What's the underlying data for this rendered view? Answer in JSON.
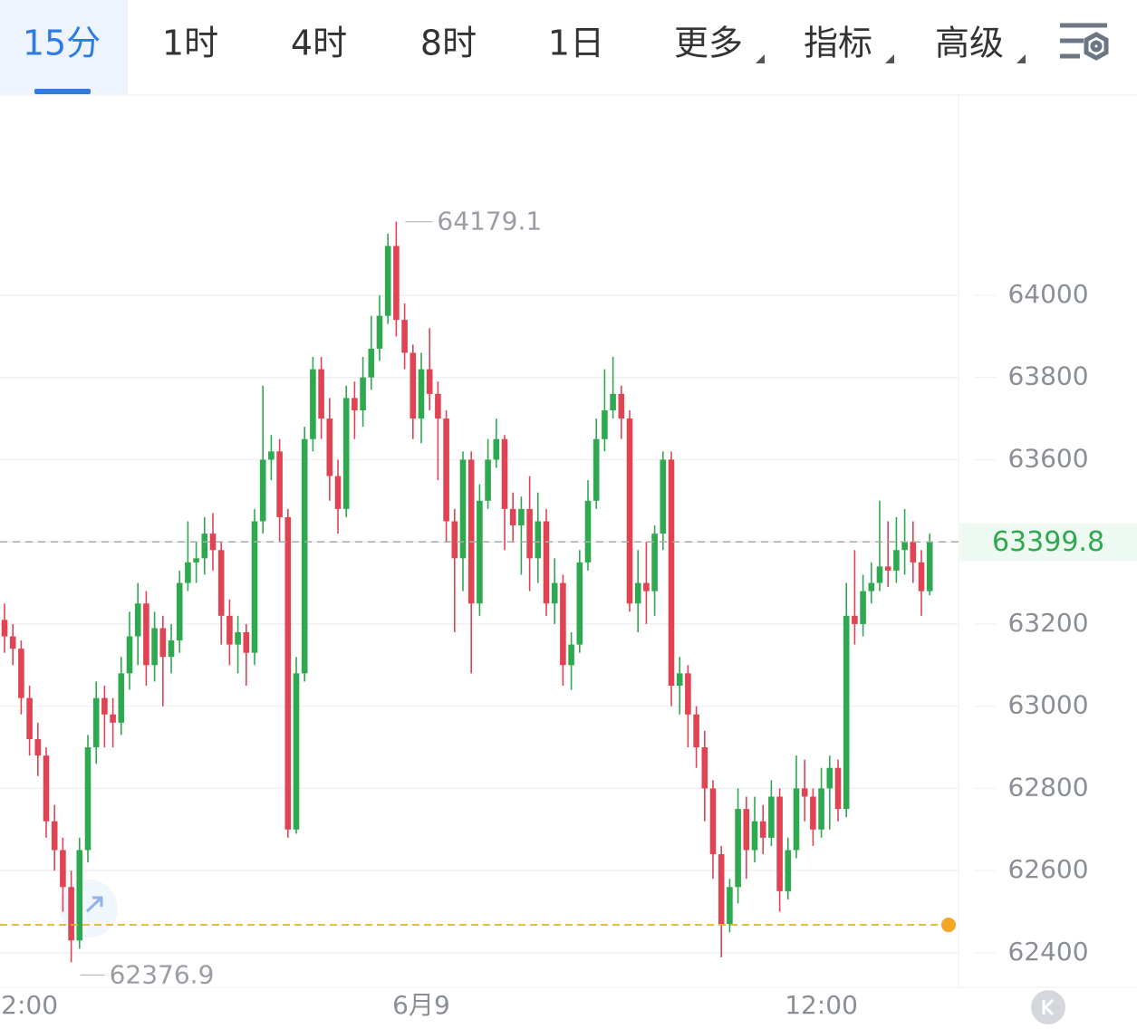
{
  "tabs": [
    "15分",
    "1时",
    "4时",
    "8时",
    "1日",
    "更多",
    "指标",
    "高级"
  ],
  "active_tab": 0,
  "dropdown_tabs": [
    5,
    6,
    7
  ],
  "chart_data": {
    "type": "candlestick",
    "up_color": "#2ea94f",
    "down_color": "#e04452",
    "open": [
      63210,
      63170,
      63140,
      63020,
      62920,
      62880,
      62720,
      62650,
      62560,
      62430,
      62650,
      62900,
      63020,
      62980,
      62960,
      63080,
      63170,
      63250,
      63100,
      63190,
      63120,
      63160,
      63300,
      63350,
      63360,
      63420,
      63380,
      63220,
      63150,
      63180,
      63130,
      63450,
      63600,
      63620,
      63460,
      62700,
      63080,
      63650,
      63820,
      63700,
      63560,
      63480,
      63750,
      63720,
      63800,
      63870,
      63950,
      64120,
      63940,
      63860,
      63700,
      63820,
      63760,
      63700,
      63450,
      63360,
      63600,
      63250,
      63500,
      63600,
      63650,
      63480,
      63440,
      63480,
      63360,
      63450,
      63250,
      63300,
      63100,
      63150,
      63350,
      63500,
      63650,
      63720,
      63760,
      63700,
      63250,
      63300,
      63280,
      63420,
      63600,
      63050,
      63080,
      62980,
      62900,
      62800,
      62640,
      62470,
      62560,
      62750,
      62650,
      62720,
      62680,
      62780,
      62550,
      62650,
      62800,
      62780,
      62700,
      62800,
      62850,
      62750,
      63220,
      63200,
      63280,
      63300,
      63340,
      63330,
      63380,
      63400,
      63350,
      63280
    ],
    "high": [
      63250,
      63200,
      63160,
      63050,
      62960,
      62900,
      62760,
      62680,
      62600,
      62680,
      62930,
      63060,
      63050,
      63020,
      63120,
      63230,
      63300,
      63280,
      63230,
      63220,
      63200,
      63330,
      63450,
      63400,
      63460,
      63470,
      63400,
      63260,
      63220,
      63200,
      63480,
      63780,
      63660,
      63650,
      63480,
      63120,
      63680,
      63850,
      63850,
      63750,
      63600,
      63780,
      63790,
      63850,
      63950,
      64000,
      64150,
      64179.1,
      63980,
      63880,
      63860,
      63920,
      63790,
      63720,
      63480,
      63620,
      63620,
      63540,
      63650,
      63700,
      63660,
      63520,
      63510,
      63560,
      63520,
      63480,
      63360,
      63320,
      63180,
      63380,
      63550,
      63700,
      63820,
      63850,
      63780,
      63720,
      63380,
      63400,
      63440,
      63620,
      63620,
      63120,
      63100,
      63000,
      62940,
      62820,
      62660,
      62580,
      62800,
      62780,
      62780,
      62760,
      62820,
      62800,
      62680,
      62880,
      62870,
      62800,
      62850,
      62880,
      62870,
      63300,
      63380,
      63320,
      63350,
      63500,
      63450,
      63460,
      63480,
      63450,
      63380,
      63420
    ],
    "low": [
      63130,
      63100,
      62980,
      62880,
      62830,
      62680,
      62600,
      62500,
      62376.9,
      62410,
      62620,
      62860,
      62900,
      62900,
      62930,
      63040,
      63100,
      63050,
      63060,
      63000,
      63080,
      63130,
      63280,
      63300,
      63320,
      63330,
      63150,
      63100,
      63080,
      63050,
      63100,
      63420,
      63550,
      63400,
      62680,
      62690,
      63060,
      63620,
      63650,
      63500,
      63420,
      63460,
      63650,
      63680,
      63770,
      63840,
      63930,
      63900,
      63820,
      63650,
      63640,
      63720,
      63550,
      63400,
      63180,
      63280,
      63080,
      63220,
      63480,
      63580,
      63380,
      63400,
      63320,
      63280,
      63300,
      63220,
      63200,
      63050,
      63040,
      63130,
      63330,
      63480,
      63620,
      63700,
      63650,
      63230,
      63180,
      63200,
      63220,
      63380,
      63000,
      62980,
      62900,
      62850,
      62720,
      62580,
      62389,
      62450,
      62520,
      62580,
      62620,
      62640,
      62660,
      62500,
      62530,
      62630,
      62720,
      62660,
      62680,
      62700,
      62720,
      62730,
      63150,
      63170,
      63250,
      63280,
      63290,
      63300,
      63320,
      63300,
      63220,
      63270
    ],
    "close": [
      63170,
      63140,
      63020,
      62920,
      62880,
      62720,
      62650,
      62560,
      62430,
      62650,
      62900,
      63020,
      62980,
      62960,
      63080,
      63170,
      63250,
      63100,
      63190,
      63120,
      63160,
      63300,
      63350,
      63360,
      63420,
      63380,
      63220,
      63150,
      63180,
      63130,
      63450,
      63600,
      63620,
      63460,
      62700,
      63080,
      63650,
      63820,
      63700,
      63560,
      63480,
      63750,
      63720,
      63800,
      63870,
      63950,
      64120,
      63940,
      63860,
      63700,
      63820,
      63760,
      63700,
      63450,
      63360,
      63600,
      63250,
      63500,
      63600,
      63650,
      63480,
      63440,
      63480,
      63360,
      63450,
      63250,
      63300,
      63100,
      63150,
      63350,
      63500,
      63650,
      63720,
      63760,
      63700,
      63250,
      63300,
      63280,
      63420,
      63600,
      63050,
      63080,
      62980,
      62900,
      62800,
      62640,
      62470,
      62560,
      62750,
      62650,
      62720,
      62680,
      62780,
      62550,
      62650,
      62800,
      62780,
      62700,
      62800,
      62850,
      62750,
      63220,
      63200,
      63280,
      63300,
      63340,
      63330,
      63380,
      63400,
      63350,
      63280,
      63399.8
    ],
    "xticks": [
      {
        "value": 3,
        "label": "2:00"
      },
      {
        "value": 50,
        "label": "6月9"
      },
      {
        "value": 98,
        "label": "12:00"
      }
    ],
    "ylim": [
      62316,
      64487
    ],
    "yticks": [
      62400,
      62600,
      62800,
      63000,
      63200,
      63400,
      63600,
      63800,
      64000
    ],
    "grid": true,
    "max_label": 64179.1,
    "min_label": 62376.9,
    "last_price": 63399.8,
    "alert_line": 62468
  }
}
